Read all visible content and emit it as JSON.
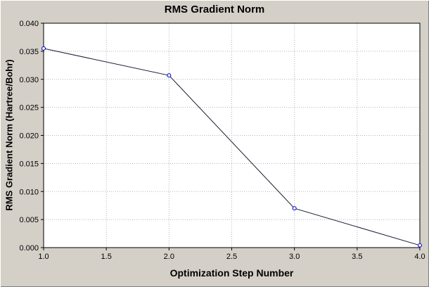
{
  "chart": {
    "title": "RMS Gradient Norm",
    "xlabel": "Optimization Step Number",
    "ylabel": "RMS Gradient Norm (Hartree/Bohr)"
  },
  "chart_data": {
    "type": "line",
    "title": "RMS Gradient Norm",
    "xlabel": "Optimization Step Number",
    "ylabel": "RMS Gradient Norm (Hartree/Bohr)",
    "x": [
      1,
      2,
      3,
      4
    ],
    "values": [
      0.0355,
      0.0307,
      0.007,
      0.0004
    ],
    "xlim": [
      1.0,
      4.0
    ],
    "ylim": [
      0.0,
      0.04
    ],
    "x_ticks": [
      1.0,
      1.5,
      2.0,
      2.5,
      3.0,
      3.5,
      4.0
    ],
    "x_tick_labels": [
      "1.0",
      "1.5",
      "2.0",
      "2.5",
      "3.0",
      "3.5",
      "4.0"
    ],
    "y_ticks": [
      0.0,
      0.005,
      0.01,
      0.015,
      0.02,
      0.025,
      0.03,
      0.035,
      0.04
    ],
    "y_tick_labels": [
      "0.000",
      "0.005",
      "0.010",
      "0.015",
      "0.020",
      "0.025",
      "0.030",
      "0.035",
      "0.040"
    ],
    "grid": true,
    "legend": "none",
    "colors": {
      "window_background": "#d4d0c8",
      "plot_background": "#ffffff",
      "grid_color": "#b4b4b4",
      "axis_color": "#000000",
      "line_color": "#1a1a33",
      "marker_stroke": "#0000cc",
      "marker_fill": "#e8f0ff",
      "text_color": "#000000"
    }
  }
}
